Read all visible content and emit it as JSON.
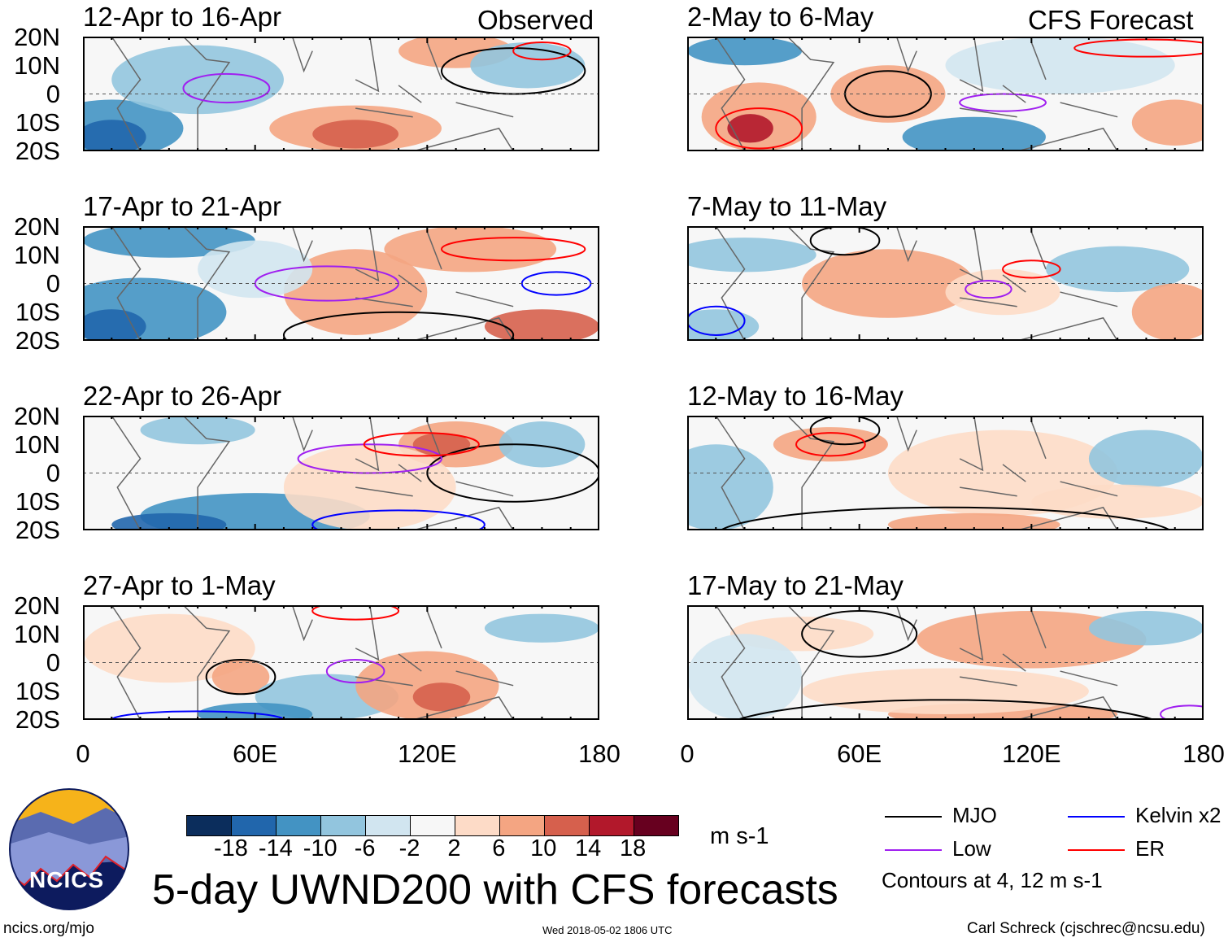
{
  "chart_data": {
    "type": "heatmap",
    "title": "5-day UWND200 with CFS forecasts",
    "units": "m s-1",
    "column_headers": [
      "Observed",
      "CFS Forecast"
    ],
    "y_ticks": [
      "20N",
      "10N",
      "0",
      "10S",
      "20S"
    ],
    "x_ticks": [
      "0",
      "60E",
      "120E",
      "180"
    ],
    "xlim": [
      0,
      180
    ],
    "ylim": [
      -20,
      20
    ],
    "panels": [
      {
        "label": "12-Apr to 16-Apr",
        "column": "Observed"
      },
      {
        "label": "17-Apr to 21-Apr",
        "column": "Observed"
      },
      {
        "label": "22-Apr to 26-Apr",
        "column": "Observed"
      },
      {
        "label": "27-Apr to 1-May",
        "column": "Observed"
      },
      {
        "label": "2-May to 6-May",
        "column": "CFS Forecast"
      },
      {
        "label": "7-May to 11-May",
        "column": "CFS Forecast"
      },
      {
        "label": "12-May to 16-May",
        "column": "CFS Forecast"
      },
      {
        "label": "17-May to 21-May",
        "column": "CFS Forecast"
      }
    ],
    "colorbar": {
      "levels": [
        "-18",
        "-14",
        "-10",
        "-6",
        "-2",
        "2",
        "6",
        "10",
        "14",
        "18"
      ],
      "colors": [
        "#0b2d5c",
        "#2166ac",
        "#4393c3",
        "#92c5de",
        "#d1e5f0",
        "#f7f7f7",
        "#fddbc7",
        "#f4a582",
        "#d6604d",
        "#b2182b",
        "#67001f"
      ]
    },
    "legend": [
      {
        "label": "MJO",
        "color": "#000000"
      },
      {
        "label": "Kelvin x2",
        "color": "#0000ff"
      },
      {
        "label": "Low",
        "color": "#a020f0"
      },
      {
        "label": "ER",
        "color": "#ff0000"
      }
    ],
    "contour_note": "Contours at 4, 12 m s-1"
  },
  "footer": {
    "logo_text": "NCICS",
    "url": "ncics.org/mjo",
    "timestamp": "Wed 2018-05-02 1806 UTC",
    "author": "Carl Schreck (cjschrec@ncsu.edu)"
  }
}
